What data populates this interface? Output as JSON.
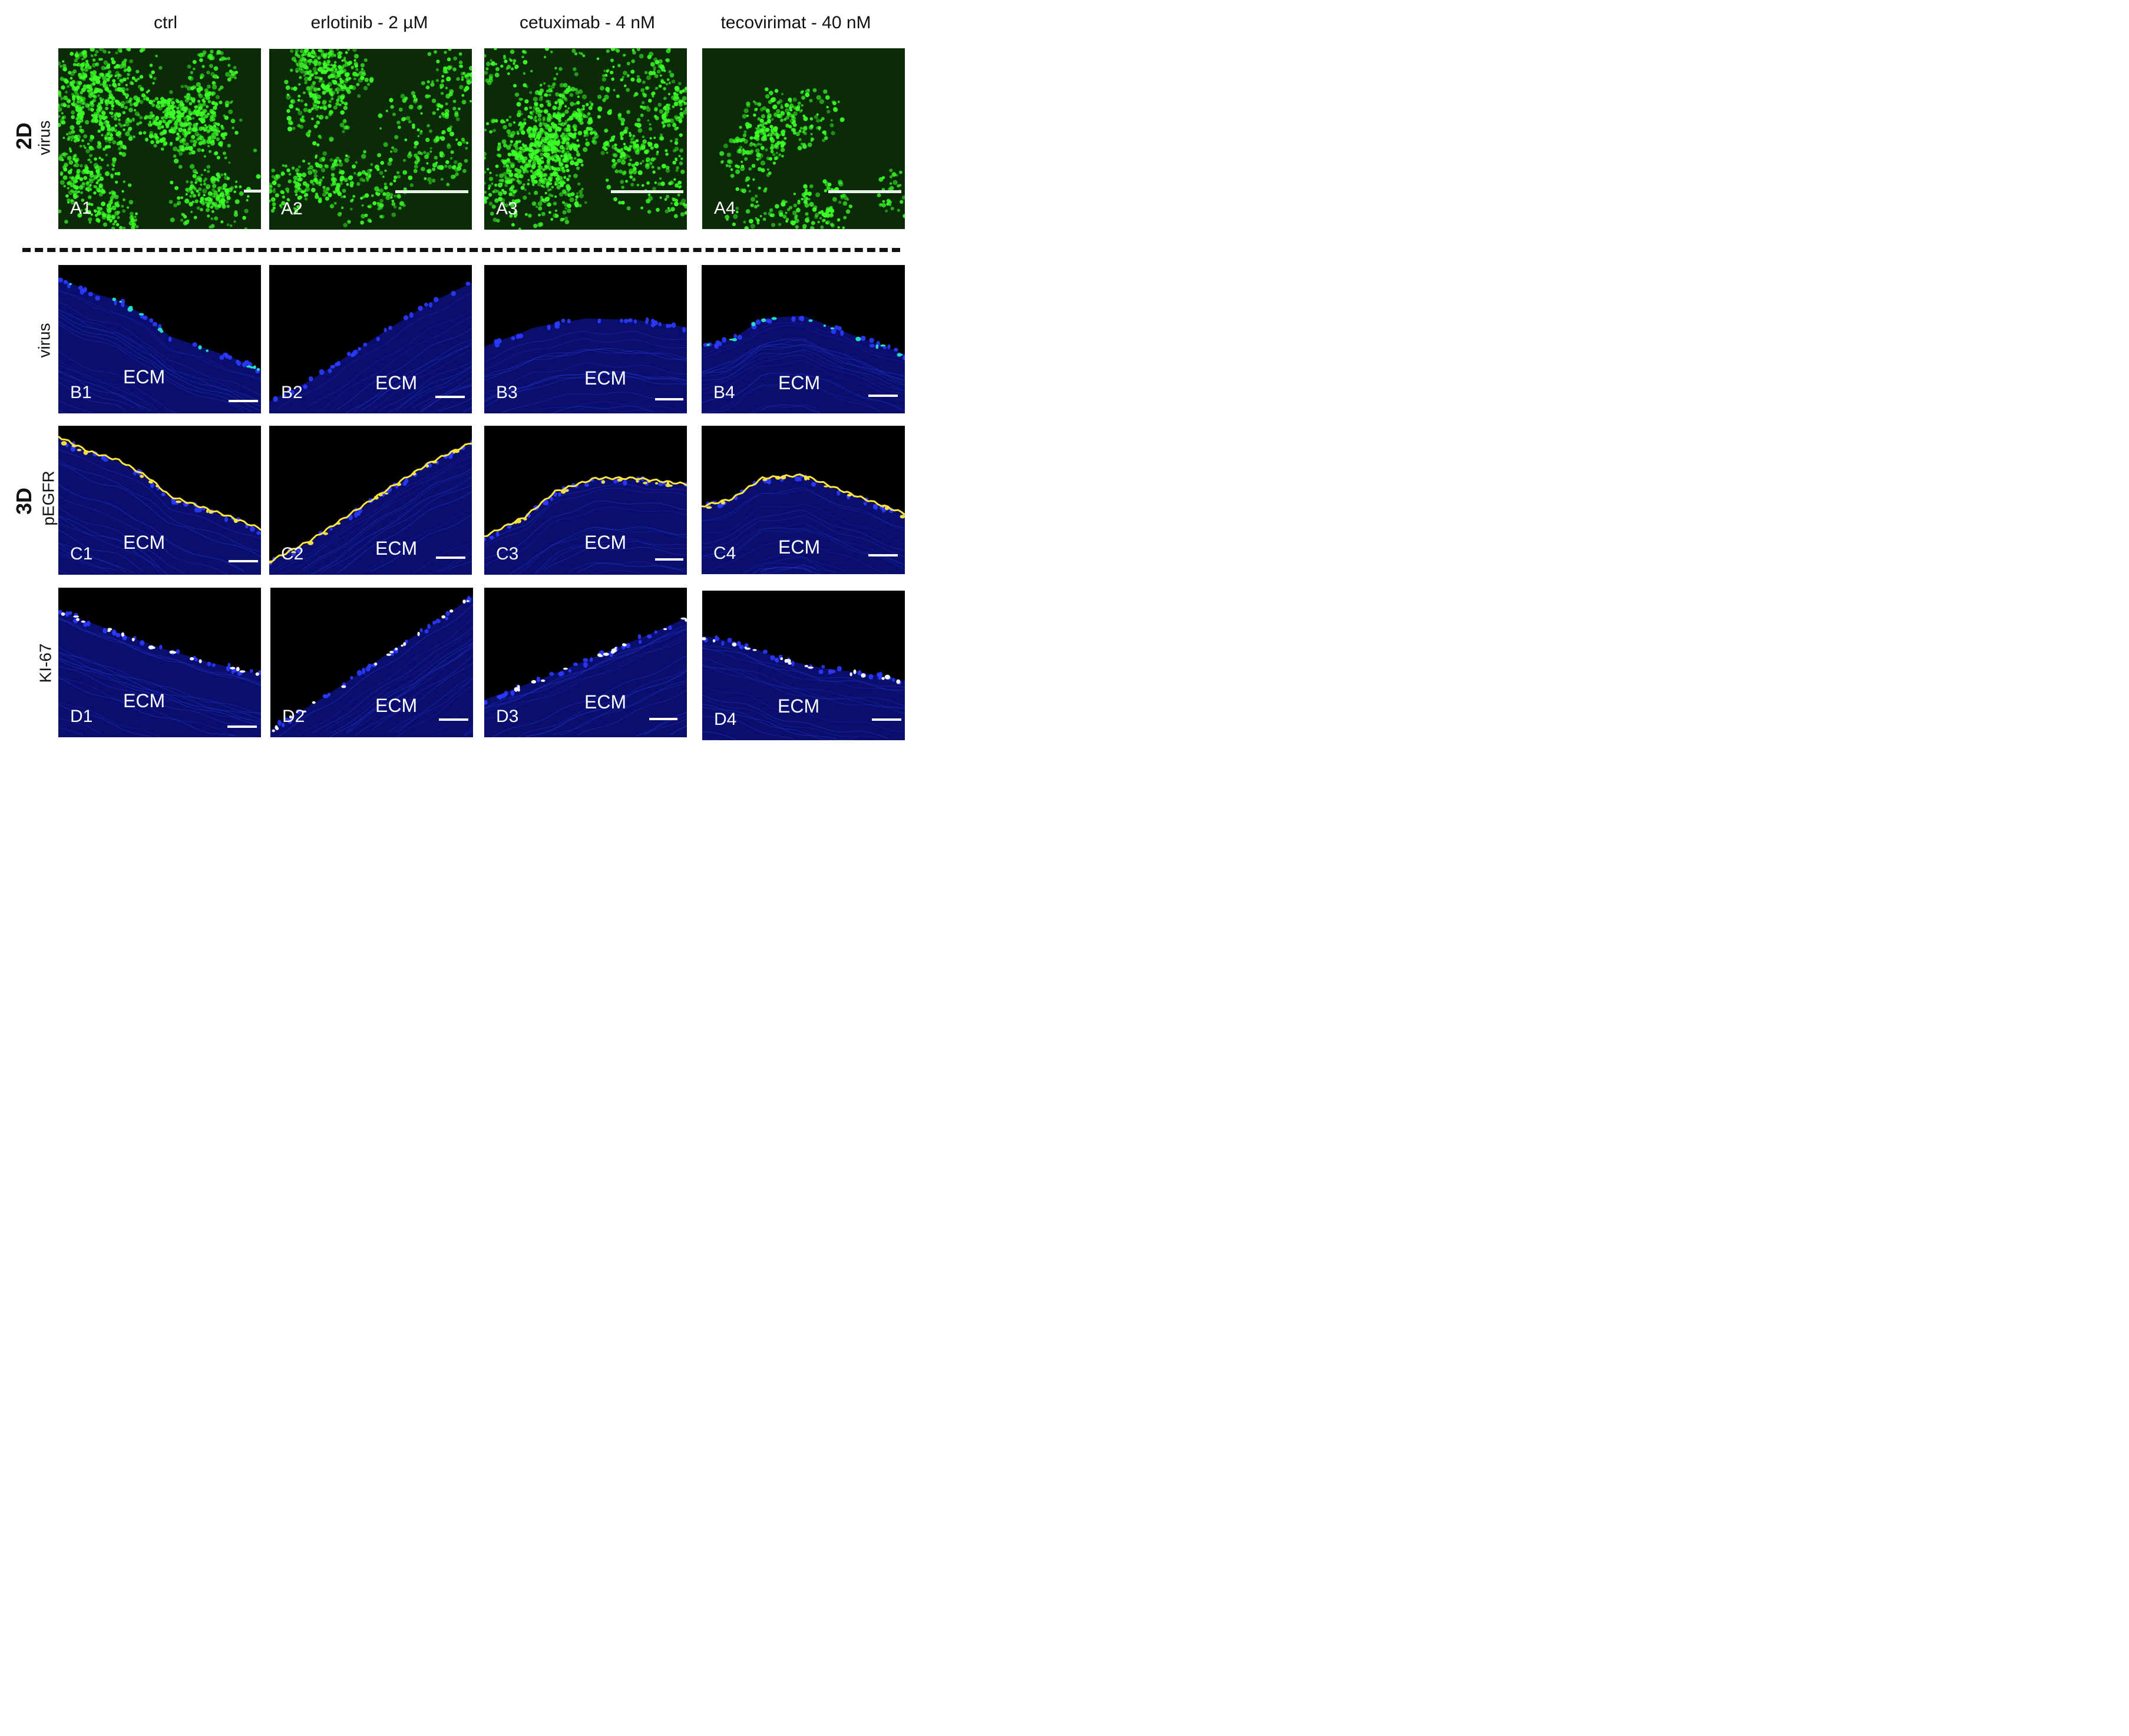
{
  "columns": [
    "ctrl",
    "erlotinib - 2 µM",
    "cetuximab - 4 nM",
    "tecovirimat - 40 nM"
  ],
  "rows": {
    "2d_label": "2D",
    "3d_label": "3D",
    "row_a_label": "virus",
    "row_b_label": "virus",
    "row_c_label": "pEGFR",
    "row_d_label": "KI-67"
  },
  "panels": {
    "A": [
      "A1",
      "A2",
      "A3",
      "A4"
    ],
    "B": [
      "B1",
      "B2",
      "B3",
      "B4"
    ],
    "C": [
      "C1",
      "C2",
      "C3",
      "C4"
    ],
    "D": [
      "D1",
      "D2",
      "D3",
      "D4"
    ]
  },
  "ecm_label": "ECM",
  "colors": {
    "virus_green": "#3cff28",
    "dapi_blue": "#1e22c8",
    "pegfr_yellow": "#ffe640",
    "ki67_white": "#ffffff",
    "divider": "#111111"
  }
}
